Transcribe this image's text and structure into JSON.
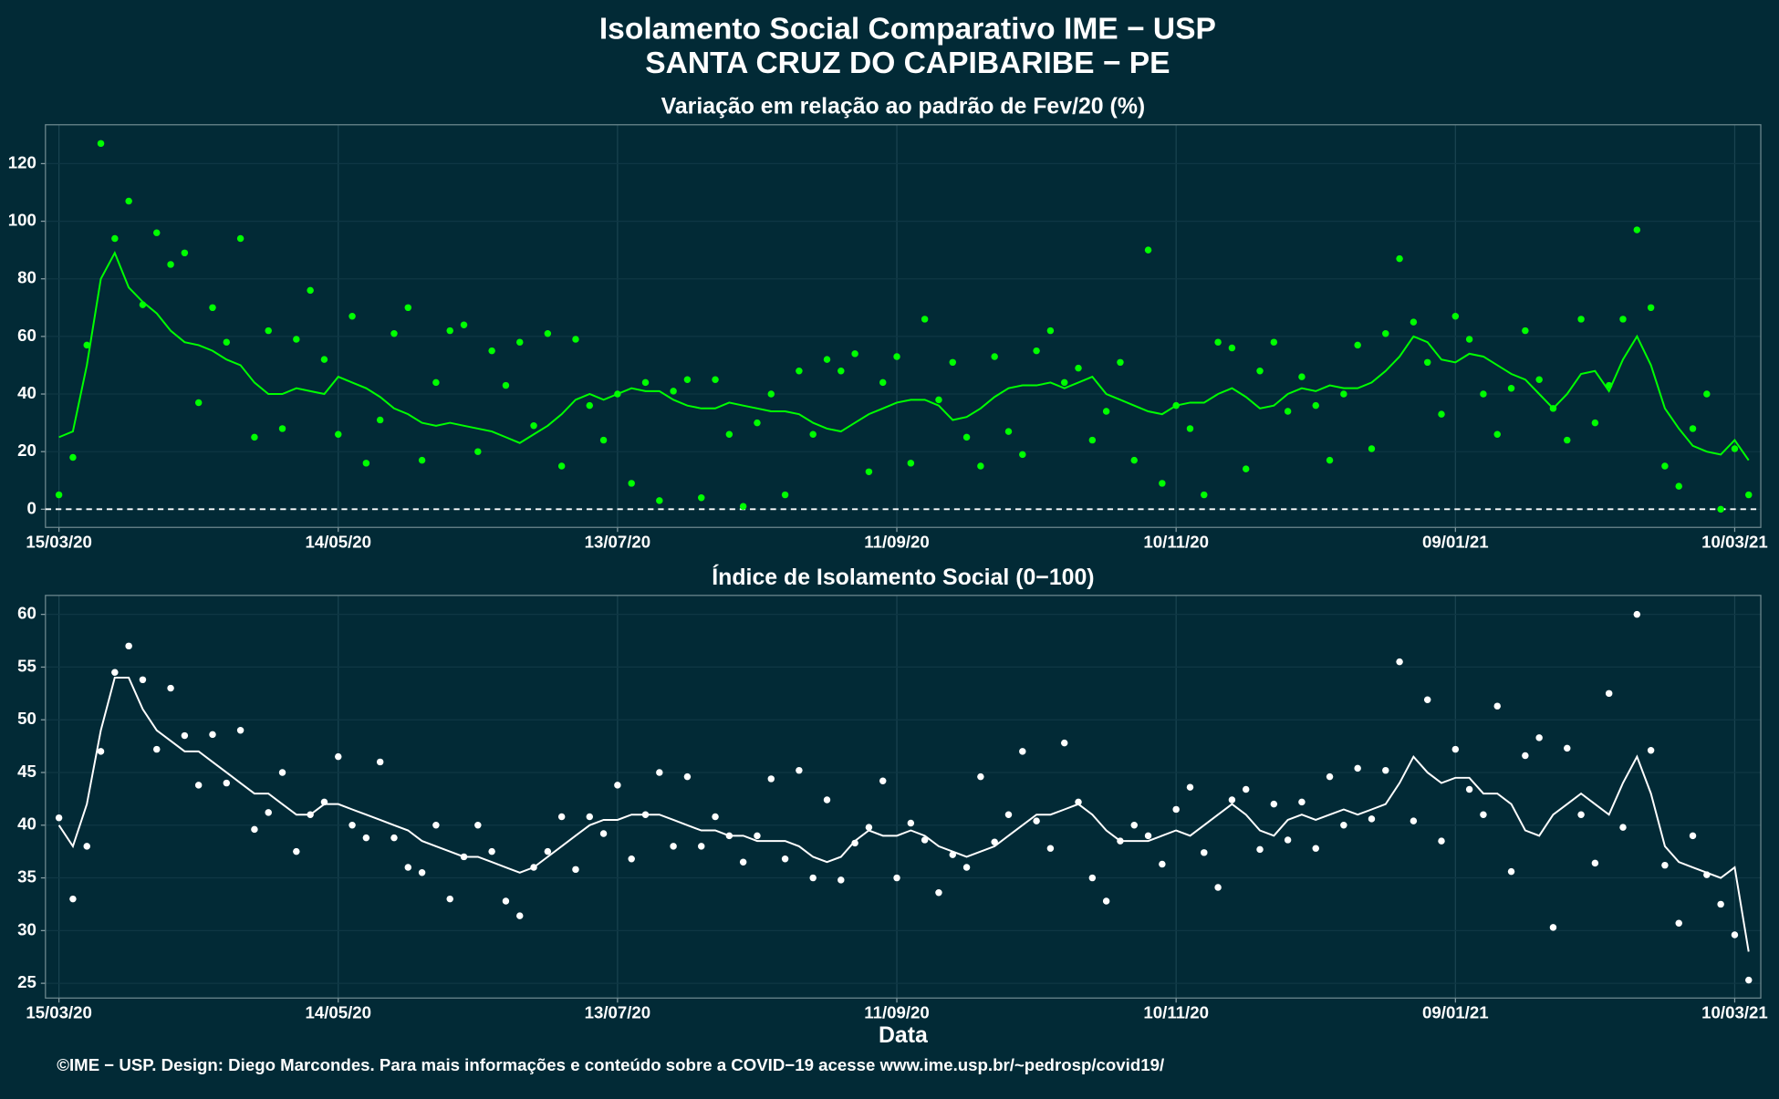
{
  "header": {
    "title": "Isolamento Social Comparativo IME − USP",
    "subtitle": "SANTA CRUZ DO CAPIBARIBE − PE"
  },
  "footer": "©IME − USP. Design: Diego Marcondes. Para mais informações e conteúdo sobre a COVID−19 acesse www.ime.usp.br/~pedrosp/covid19/",
  "chart_data": [
    {
      "type": "scatter",
      "title": "Variação em relação ao padrão de Fev/20 (%)",
      "x": [
        0,
        3,
        6,
        9,
        12,
        15,
        18,
        21,
        24,
        27,
        30,
        33,
        36,
        39,
        42,
        45,
        48,
        51,
        54,
        57,
        60,
        63,
        66,
        69,
        72,
        75,
        78,
        81,
        84,
        87,
        90,
        93,
        96,
        99,
        102,
        105,
        108,
        111,
        114,
        117,
        120,
        123,
        126,
        129,
        132,
        135,
        138,
        141,
        144,
        147,
        150,
        153,
        156,
        159,
        162,
        165,
        168,
        171,
        174,
        177,
        180,
        183,
        186,
        189,
        192,
        195,
        198,
        201,
        204,
        207,
        210,
        213,
        216,
        219,
        222,
        225,
        228,
        231,
        234,
        237,
        240,
        243,
        246,
        249,
        252,
        255,
        258,
        261,
        264,
        267,
        270,
        273,
        276,
        279,
        282,
        285,
        288,
        291,
        294,
        297,
        300,
        303,
        306,
        309,
        312,
        315,
        318,
        321,
        324,
        327,
        330,
        333,
        336,
        339,
        342,
        345,
        348,
        351,
        354,
        357,
        360,
        363
      ],
      "series": [
        {
          "type": "scatter",
          "color": "#00ff00",
          "values": [
            5,
            18,
            57,
            127,
            94,
            107,
            71,
            96,
            85,
            89,
            37,
            70,
            58,
            94,
            25,
            62,
            28,
            59,
            76,
            52,
            26,
            67,
            16,
            31,
            61,
            70,
            17,
            44,
            62,
            64,
            20,
            55,
            43,
            58,
            29,
            61,
            15,
            59,
            36,
            24,
            40,
            9,
            44,
            3,
            41,
            45,
            4,
            45,
            26,
            1,
            30,
            40,
            5,
            48,
            26,
            52,
            48,
            54,
            13,
            44,
            53,
            16,
            66,
            38,
            51,
            25,
            15,
            53,
            27,
            19,
            55,
            62,
            44,
            49,
            24,
            34,
            51,
            17,
            90,
            9,
            36,
            28,
            5,
            58,
            56,
            14,
            48,
            58,
            34,
            46,
            36,
            17,
            40,
            57,
            21,
            61,
            87,
            65,
            51,
            33,
            67,
            59,
            40,
            26,
            42,
            62,
            45,
            35,
            24,
            66,
            30,
            43,
            66,
            97,
            70,
            15,
            8,
            28,
            40,
            0,
            21,
            5
          ]
        },
        {
          "type": "line",
          "color": "#00ff00",
          "values": [
            25,
            27,
            50,
            80,
            89,
            77,
            72,
            68,
            62,
            58,
            57,
            55,
            52,
            50,
            44,
            40,
            40,
            42,
            41,
            40,
            46,
            44,
            42,
            39,
            35,
            33,
            30,
            29,
            30,
            29,
            28,
            27,
            25,
            23,
            26,
            29,
            33,
            38,
            40,
            38,
            40,
            42,
            41,
            41,
            38,
            36,
            35,
            35,
            37,
            36,
            35,
            34,
            34,
            33,
            30,
            28,
            27,
            30,
            33,
            35,
            37,
            38,
            38,
            36,
            31,
            32,
            35,
            39,
            42,
            43,
            43,
            44,
            42,
            44,
            46,
            40,
            38,
            36,
            34,
            33,
            36,
            37,
            37,
            40,
            42,
            39,
            35,
            36,
            40,
            42,
            41,
            43,
            42,
            42,
            44,
            48,
            53,
            60,
            58,
            52,
            51,
            54,
            53,
            50,
            47,
            45,
            40,
            35,
            40,
            47,
            48,
            41,
            52,
            60,
            50,
            35,
            28,
            22,
            20,
            19,
            24,
            17
          ]
        }
      ],
      "reference_line": 0,
      "xlim": [
        -2.9,
        365.6
      ],
      "xticks": [
        {
          "value": 0,
          "label": "15/03/20"
        },
        {
          "value": 60,
          "label": "14/05/20"
        },
        {
          "value": 120,
          "label": "13/07/20"
        },
        {
          "value": 180,
          "label": "11/09/20"
        },
        {
          "value": 240,
          "label": "10/11/20"
        },
        {
          "value": 300,
          "label": "09/01/21"
        },
        {
          "value": 360,
          "label": "10/03/21"
        }
      ],
      "ylim": [
        -6.3,
        133.5
      ],
      "yticks": [
        0,
        20,
        40,
        60,
        80,
        100,
        120
      ],
      "grid": true
    },
    {
      "type": "scatter",
      "title": "Índice de Isolamento Social (0−100)",
      "xlabel": "Data",
      "x": [
        0,
        3,
        6,
        9,
        12,
        15,
        18,
        21,
        24,
        27,
        30,
        33,
        36,
        39,
        42,
        45,
        48,
        51,
        54,
        57,
        60,
        63,
        66,
        69,
        72,
        75,
        78,
        81,
        84,
        87,
        90,
        93,
        96,
        99,
        102,
        105,
        108,
        111,
        114,
        117,
        120,
        123,
        126,
        129,
        132,
        135,
        138,
        141,
        144,
        147,
        150,
        153,
        156,
        159,
        162,
        165,
        168,
        171,
        174,
        177,
        180,
        183,
        186,
        189,
        192,
        195,
        198,
        201,
        204,
        207,
        210,
        213,
        216,
        219,
        222,
        225,
        228,
        231,
        234,
        237,
        240,
        243,
        246,
        249,
        252,
        255,
        258,
        261,
        264,
        267,
        270,
        273,
        276,
        279,
        282,
        285,
        288,
        291,
        294,
        297,
        300,
        303,
        306,
        309,
        312,
        315,
        318,
        321,
        324,
        327,
        330,
        333,
        336,
        339,
        342,
        345,
        348,
        351,
        354,
        357,
        360,
        363
      ],
      "series": [
        {
          "type": "scatter",
          "color": "#ffffff",
          "values": [
            40.7,
            33,
            38,
            47,
            54.5,
            57,
            53.8,
            47.2,
            53,
            48.5,
            43.8,
            48.6,
            44,
            49,
            39.6,
            41.2,
            45,
            37.5,
            41,
            42.2,
            46.5,
            40,
            38.8,
            46,
            38.8,
            36,
            35.5,
            40,
            33,
            37,
            40,
            37.5,
            32.8,
            31.4,
            36,
            37.5,
            40.8,
            35.8,
            40.8,
            39.2,
            43.8,
            36.8,
            41,
            45,
            38,
            44.6,
            38,
            40.8,
            39,
            36.5,
            39,
            44.4,
            36.8,
            45.2,
            35,
            42.4,
            34.8,
            38.3,
            39.8,
            44.2,
            35,
            40.2,
            38.6,
            33.6,
            37.2,
            36,
            44.6,
            38.4,
            41,
            47,
            40.4,
            37.8,
            47.8,
            42.2,
            35,
            32.8,
            38.5,
            40,
            39,
            36.3,
            41.5,
            43.6,
            37.4,
            34.1,
            42.4,
            43.4,
            37.7,
            42,
            38.6,
            42.2,
            37.8,
            44.6,
            40,
            45.4,
            40.6,
            45.2,
            55.5,
            40.4,
            51.9,
            38.5,
            47.2,
            43.4,
            41,
            51.3,
            35.6,
            46.6,
            48.3,
            30.3,
            47.3,
            41,
            36.4,
            52.5,
            39.8,
            60,
            47.1,
            36.2,
            30.7,
            39,
            35.3,
            32.5,
            29.6,
            25.3
          ]
        },
        {
          "type": "line",
          "color": "#ffffff",
          "values": [
            40,
            38,
            42,
            49,
            54,
            54,
            51,
            49,
            48,
            47,
            47,
            46,
            45,
            44,
            43,
            43,
            42,
            41,
            41,
            42,
            42,
            41.5,
            41,
            40.5,
            40,
            39.5,
            38.5,
            38,
            37.5,
            37,
            37,
            36.5,
            36,
            35.5,
            36,
            37,
            38,
            39,
            40,
            40.5,
            40.5,
            41,
            41,
            41,
            40.5,
            40,
            39.5,
            39.5,
            39,
            39,
            38.5,
            38.5,
            38.5,
            38,
            37,
            36.5,
            37,
            38.5,
            39.5,
            39,
            39,
            39.5,
            39,
            38,
            37.5,
            37,
            37.5,
            38,
            39,
            40,
            41,
            41,
            41.5,
            42,
            41,
            39.5,
            38.5,
            38.5,
            38.5,
            39,
            39.5,
            39,
            40,
            41,
            42,
            41,
            39.5,
            39,
            40.5,
            41,
            40.5,
            41,
            41.5,
            41,
            41.5,
            42,
            44,
            46.5,
            45,
            44,
            44.5,
            44.5,
            43,
            43,
            42,
            39.5,
            39,
            41,
            42,
            43,
            42,
            41,
            44,
            46.5,
            43,
            38,
            36.5,
            36,
            35.5,
            35,
            36,
            28
          ]
        }
      ],
      "xlim": [
        -2.9,
        365.6
      ],
      "xticks": [
        {
          "value": 0,
          "label": "15/03/20"
        },
        {
          "value": 60,
          "label": "14/05/20"
        },
        {
          "value": 120,
          "label": "13/07/20"
        },
        {
          "value": 180,
          "label": "11/09/20"
        },
        {
          "value": 240,
          "label": "10/11/20"
        },
        {
          "value": 300,
          "label": "09/01/21"
        },
        {
          "value": 360,
          "label": "10/03/21"
        }
      ],
      "ylim": [
        23.6,
        61.8
      ],
      "yticks": [
        25,
        30,
        35,
        40,
        45,
        50,
        55,
        60
      ],
      "grid": true
    }
  ]
}
